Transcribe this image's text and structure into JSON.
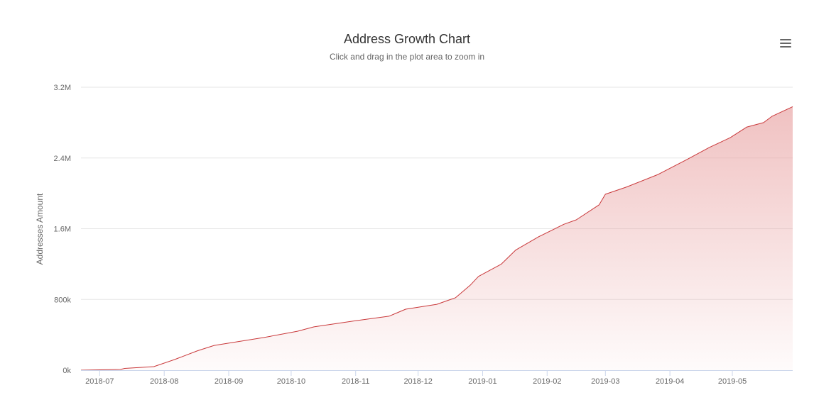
{
  "chart_data": {
    "type": "area",
    "title": "Address Growth Chart",
    "subtitle": "Click and drag in the plot area to zoom in",
    "ylabel": "Addresses Amount",
    "xlabel": "",
    "x_type": "datetime",
    "xlim": [
      "2018-06-22",
      "2019-05-30"
    ],
    "ylim": [
      0,
      3200000
    ],
    "y_ticks": [
      0,
      800000,
      1600000,
      2400000,
      3200000
    ],
    "y_tick_labels": [
      "0k",
      "800k",
      "1.6M",
      "2.4M",
      "3.2M"
    ],
    "x_ticks": [
      "2018-07-01",
      "2018-08-01",
      "2018-09-01",
      "2018-10-01",
      "2018-11-01",
      "2018-12-01",
      "2019-01-01",
      "2019-02-01",
      "2019-03-01",
      "2019-04-01",
      "2019-05-01"
    ],
    "x_tick_labels": [
      "2018-07",
      "2018-08",
      "2018-09",
      "2018-10",
      "2018-11",
      "2018-12",
      "2019-01",
      "2019-02",
      "2019-03",
      "2019-04",
      "2019-05"
    ],
    "grid": "horizontal",
    "legend": "none",
    "series": [
      {
        "line_color": "#c9383a",
        "fill_color": "#e8a0a0",
        "points": [
          [
            "2018-06-22",
            0
          ],
          [
            "2018-07-11",
            8000
          ],
          [
            "2018-07-13",
            20000
          ],
          [
            "2018-07-27",
            40000
          ],
          [
            "2018-08-06",
            120000
          ],
          [
            "2018-08-17",
            220000
          ],
          [
            "2018-08-25",
            280000
          ],
          [
            "2018-09-18",
            370000
          ],
          [
            "2018-10-04",
            440000
          ],
          [
            "2018-10-12",
            490000
          ],
          [
            "2018-11-01",
            560000
          ],
          [
            "2018-11-17",
            610000
          ],
          [
            "2018-11-21",
            650000
          ],
          [
            "2018-11-25",
            690000
          ],
          [
            "2018-12-10",
            745000
          ],
          [
            "2018-12-19",
            820000
          ],
          [
            "2018-12-26",
            960000
          ],
          [
            "2018-12-30",
            1060000
          ],
          [
            "2019-01-10",
            1200000
          ],
          [
            "2019-01-17",
            1360000
          ],
          [
            "2019-01-28",
            1510000
          ],
          [
            "2019-02-09",
            1650000
          ],
          [
            "2019-02-15",
            1700000
          ],
          [
            "2019-02-26",
            1870000
          ],
          [
            "2019-03-01",
            1990000
          ],
          [
            "2019-03-11",
            2070000
          ],
          [
            "2019-03-26",
            2210000
          ],
          [
            "2019-04-09",
            2380000
          ],
          [
            "2019-04-20",
            2520000
          ],
          [
            "2019-04-30",
            2630000
          ],
          [
            "2019-05-08",
            2750000
          ],
          [
            "2019-05-16",
            2800000
          ],
          [
            "2019-05-20",
            2870000
          ],
          [
            "2019-05-30",
            2980000
          ]
        ]
      }
    ]
  },
  "toolbar": {
    "menu_icon": "hamburger-menu-icon"
  }
}
